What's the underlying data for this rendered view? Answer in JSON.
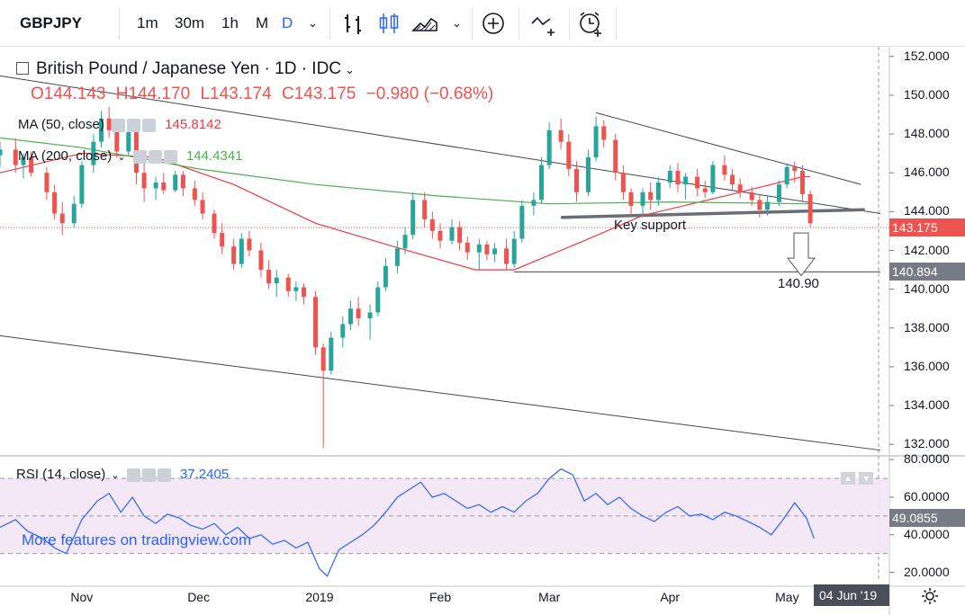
{
  "toolbar": {
    "symbol": "GBPJPY",
    "intervals": [
      "1m",
      "30m",
      "1h",
      "M",
      "D"
    ],
    "active_interval": "D"
  },
  "legend": {
    "title": "British Pound / Japanese Yen · 1D · IDC",
    "open": "O144.143",
    "high": "H144.170",
    "low": "L143.174",
    "close": "C143.175",
    "change": "−0.980 (−0.68%)",
    "ma50": {
      "label": "MA (50, close)",
      "value": "145.8142",
      "color": "#f23645"
    },
    "ma200": {
      "label": "MA (200, close)",
      "value": "144.4341",
      "color": "#4caf50"
    }
  },
  "annotations": {
    "key_support": "Key support",
    "target": "140.90"
  },
  "price_labels": {
    "last": "143.175",
    "level": "140.894"
  },
  "rsi": {
    "label": "RSI (14, close)",
    "value": "37.2405",
    "current": "49.0855",
    "color": "#2962ff"
  },
  "watermark": "More features on tradingview.com",
  "date_badge": "04 Jun '19",
  "colors": {
    "up": "#26a69a",
    "down": "#ef5350"
  },
  "chart_data": {
    "type": "candlestick",
    "title": "British Pound / Japanese Yen · 1D · IDC",
    "y_ticks": [
      132,
      134,
      136,
      138,
      140,
      142,
      144,
      146,
      148,
      150,
      152
    ],
    "y_tick_labels": [
      "132.000",
      "134.000",
      "136.000",
      "138.000",
      "140.000",
      "142.000",
      "144.000",
      "146.000",
      "148.000",
      "150.000",
      "152.000"
    ],
    "ylim": [
      131.5,
      152.5
    ],
    "x_tick_labels": [
      "Nov",
      "Dec",
      "2019",
      "Feb",
      "Mar",
      "Apr",
      "May"
    ],
    "x_tick_dates": [
      "2018-11-01",
      "2018-12-01",
      "2019-01-01",
      "2019-02-01",
      "2019-03-01",
      "2019-04-01",
      "2019-05-01"
    ],
    "xlim": [
      "2018-10-11",
      "2019-05-25"
    ],
    "series": [
      {
        "name": "MA (50, close)",
        "color": "#f23645",
        "points": [
          [
            "2018-10-11",
            146.0
          ],
          [
            "2018-11-01",
            147.0
          ],
          [
            "2018-11-20",
            146.8
          ],
          [
            "2018-12-10",
            145.4
          ],
          [
            "2018-12-31",
            143.4
          ],
          [
            "2019-01-20",
            142.2
          ],
          [
            "2019-02-10",
            141.0
          ],
          [
            "2019-02-20",
            141.0
          ],
          [
            "2019-03-10",
            142.5
          ],
          [
            "2019-03-25",
            143.8
          ],
          [
            "2019-04-15",
            144.8
          ],
          [
            "2019-05-05",
            145.8
          ],
          [
            "2019-05-07",
            145.8
          ]
        ]
      },
      {
        "name": "MA (200, close)",
        "color": "#4caf50",
        "points": [
          [
            "2018-10-11",
            147.8
          ],
          [
            "2018-11-01",
            147.3
          ],
          [
            "2018-12-01",
            146.2
          ],
          [
            "2018-12-31",
            145.4
          ],
          [
            "2019-02-01",
            144.8
          ],
          [
            "2019-03-01",
            144.4
          ],
          [
            "2019-04-01",
            144.5
          ],
          [
            "2019-05-07",
            144.4
          ]
        ]
      }
    ],
    "candles": [
      {
        "date": "2018-10-11",
        "o": 146.9,
        "h": 147.6,
        "l": 146.3,
        "c": 147.2
      },
      {
        "date": "2018-10-15",
        "o": 147.2,
        "h": 147.8,
        "l": 146.0,
        "c": 146.4
      },
      {
        "date": "2018-10-17",
        "o": 146.4,
        "h": 147.0,
        "l": 145.7,
        "c": 146.8
      },
      {
        "date": "2018-10-19",
        "o": 146.8,
        "h": 147.1,
        "l": 145.8,
        "c": 146.0
      },
      {
        "date": "2018-10-23",
        "o": 146.0,
        "h": 146.3,
        "l": 144.6,
        "c": 145.0
      },
      {
        "date": "2018-10-25",
        "o": 145.0,
        "h": 145.4,
        "l": 143.6,
        "c": 143.9
      },
      {
        "date": "2018-10-27",
        "o": 143.9,
        "h": 144.5,
        "l": 142.8,
        "c": 143.4
      },
      {
        "date": "2018-10-30",
        "o": 143.4,
        "h": 144.8,
        "l": 143.2,
        "c": 144.4
      },
      {
        "date": "2018-11-01",
        "o": 144.4,
        "h": 146.6,
        "l": 144.2,
        "c": 146.4
      },
      {
        "date": "2018-11-04",
        "o": 146.4,
        "h": 148.0,
        "l": 146.0,
        "c": 147.6
      },
      {
        "date": "2018-11-06",
        "o": 147.6,
        "h": 149.2,
        "l": 147.3,
        "c": 148.8
      },
      {
        "date": "2018-11-08",
        "o": 148.8,
        "h": 149.4,
        "l": 147.8,
        "c": 148.2
      },
      {
        "date": "2018-11-10",
        "o": 148.2,
        "h": 148.6,
        "l": 146.8,
        "c": 147.1
      },
      {
        "date": "2018-11-13",
        "o": 147.1,
        "h": 148.5,
        "l": 146.9,
        "c": 148.1
      },
      {
        "date": "2018-11-15",
        "o": 148.1,
        "h": 148.3,
        "l": 145.4,
        "c": 146.0
      },
      {
        "date": "2018-11-17",
        "o": 146.0,
        "h": 146.5,
        "l": 144.5,
        "c": 145.2
      },
      {
        "date": "2018-11-20",
        "o": 145.2,
        "h": 145.8,
        "l": 144.6,
        "c": 145.5
      },
      {
        "date": "2018-11-22",
        "o": 145.5,
        "h": 146.0,
        "l": 144.9,
        "c": 145.1
      },
      {
        "date": "2018-11-25",
        "o": 145.1,
        "h": 146.1,
        "l": 145.0,
        "c": 145.9
      },
      {
        "date": "2018-11-27",
        "o": 145.9,
        "h": 146.1,
        "l": 144.8,
        "c": 145.2
      },
      {
        "date": "2018-11-30",
        "o": 145.2,
        "h": 145.6,
        "l": 144.3,
        "c": 144.6
      },
      {
        "date": "2018-12-02",
        "o": 144.6,
        "h": 145.0,
        "l": 143.6,
        "c": 143.9
      },
      {
        "date": "2018-12-05",
        "o": 143.9,
        "h": 144.1,
        "l": 142.6,
        "c": 142.9
      },
      {
        "date": "2018-12-07",
        "o": 142.9,
        "h": 143.4,
        "l": 141.8,
        "c": 142.2
      },
      {
        "date": "2018-12-10",
        "o": 142.2,
        "h": 142.6,
        "l": 141.0,
        "c": 141.3
      },
      {
        "date": "2018-12-12",
        "o": 141.3,
        "h": 142.9,
        "l": 141.1,
        "c": 142.6
      },
      {
        "date": "2018-12-14",
        "o": 142.6,
        "h": 143.0,
        "l": 141.7,
        "c": 142.0
      },
      {
        "date": "2018-12-17",
        "o": 142.0,
        "h": 142.4,
        "l": 140.6,
        "c": 141.0
      },
      {
        "date": "2018-12-19",
        "o": 141.0,
        "h": 141.5,
        "l": 140.0,
        "c": 140.3
      },
      {
        "date": "2018-12-21",
        "o": 140.3,
        "h": 141.0,
        "l": 139.6,
        "c": 140.6
      },
      {
        "date": "2018-12-24",
        "o": 140.6,
        "h": 140.8,
        "l": 139.6,
        "c": 139.9
      },
      {
        "date": "2018-12-26",
        "o": 139.9,
        "h": 140.4,
        "l": 139.4,
        "c": 140.1
      },
      {
        "date": "2018-12-28",
        "o": 140.1,
        "h": 140.3,
        "l": 139.2,
        "c": 139.6
      },
      {
        "date": "2018-12-31",
        "o": 139.6,
        "h": 139.9,
        "l": 136.6,
        "c": 137.0
      },
      {
        "date": "2019-01-02",
        "o": 137.0,
        "h": 137.2,
        "l": 131.8,
        "c": 135.8
      },
      {
        "date": "2019-01-04",
        "o": 135.8,
        "h": 137.8,
        "l": 135.6,
        "c": 137.5
      },
      {
        "date": "2019-01-07",
        "o": 137.5,
        "h": 138.6,
        "l": 137.0,
        "c": 138.2
      },
      {
        "date": "2019-01-09",
        "o": 138.2,
        "h": 139.4,
        "l": 137.9,
        "c": 139.0
      },
      {
        "date": "2019-01-11",
        "o": 139.0,
        "h": 139.6,
        "l": 138.1,
        "c": 138.5
      },
      {
        "date": "2019-01-14",
        "o": 138.5,
        "h": 139.2,
        "l": 137.4,
        "c": 138.8
      },
      {
        "date": "2019-01-16",
        "o": 138.8,
        "h": 140.4,
        "l": 138.6,
        "c": 140.1
      },
      {
        "date": "2019-01-18",
        "o": 140.1,
        "h": 141.6,
        "l": 139.9,
        "c": 141.2
      },
      {
        "date": "2019-01-21",
        "o": 141.2,
        "h": 142.5,
        "l": 140.8,
        "c": 142.1
      },
      {
        "date": "2019-01-23",
        "o": 142.1,
        "h": 143.2,
        "l": 141.8,
        "c": 142.8
      },
      {
        "date": "2019-01-25",
        "o": 142.8,
        "h": 145.0,
        "l": 142.6,
        "c": 144.6
      },
      {
        "date": "2019-01-28",
        "o": 144.6,
        "h": 145.0,
        "l": 143.2,
        "c": 143.6
      },
      {
        "date": "2019-01-30",
        "o": 143.6,
        "h": 144.0,
        "l": 142.6,
        "c": 143.0
      },
      {
        "date": "2019-02-01",
        "o": 143.0,
        "h": 143.4,
        "l": 142.1,
        "c": 142.5
      },
      {
        "date": "2019-02-04",
        "o": 142.5,
        "h": 143.6,
        "l": 142.3,
        "c": 143.2
      },
      {
        "date": "2019-02-06",
        "o": 143.2,
        "h": 143.5,
        "l": 142.0,
        "c": 142.4
      },
      {
        "date": "2019-02-08",
        "o": 142.4,
        "h": 142.7,
        "l": 141.5,
        "c": 141.9
      },
      {
        "date": "2019-02-11",
        "o": 141.9,
        "h": 142.6,
        "l": 141.0,
        "c": 142.3
      },
      {
        "date": "2019-02-13",
        "o": 142.3,
        "h": 142.5,
        "l": 141.5,
        "c": 141.8
      },
      {
        "date": "2019-02-15",
        "o": 141.8,
        "h": 142.4,
        "l": 141.4,
        "c": 142.1
      },
      {
        "date": "2019-02-18",
        "o": 142.1,
        "h": 142.6,
        "l": 141.0,
        "c": 141.3
      },
      {
        "date": "2019-02-20",
        "o": 141.3,
        "h": 143.0,
        "l": 141.1,
        "c": 142.6
      },
      {
        "date": "2019-02-22",
        "o": 142.6,
        "h": 144.6,
        "l": 142.4,
        "c": 144.3
      },
      {
        "date": "2019-02-25",
        "o": 144.3,
        "h": 145.0,
        "l": 143.8,
        "c": 144.6
      },
      {
        "date": "2019-02-27",
        "o": 144.6,
        "h": 146.8,
        "l": 144.4,
        "c": 146.4
      },
      {
        "date": "2019-03-01",
        "o": 146.4,
        "h": 148.6,
        "l": 146.2,
        "c": 148.2
      },
      {
        "date": "2019-03-04",
        "o": 148.2,
        "h": 148.8,
        "l": 147.2,
        "c": 147.6
      },
      {
        "date": "2019-03-06",
        "o": 147.6,
        "h": 148.0,
        "l": 145.8,
        "c": 146.2
      },
      {
        "date": "2019-03-08",
        "o": 146.2,
        "h": 146.6,
        "l": 144.5,
        "c": 145.0
      },
      {
        "date": "2019-03-11",
        "o": 145.0,
        "h": 147.2,
        "l": 144.8,
        "c": 146.8
      },
      {
        "date": "2019-03-13",
        "o": 146.8,
        "h": 148.9,
        "l": 146.6,
        "c": 148.4
      },
      {
        "date": "2019-03-15",
        "o": 148.4,
        "h": 148.7,
        "l": 147.3,
        "c": 147.7
      },
      {
        "date": "2019-03-18",
        "o": 147.7,
        "h": 148.0,
        "l": 145.6,
        "c": 146.0
      },
      {
        "date": "2019-03-20",
        "o": 146.0,
        "h": 146.4,
        "l": 144.6,
        "c": 145.0
      },
      {
        "date": "2019-03-22",
        "o": 145.0,
        "h": 145.2,
        "l": 143.8,
        "c": 144.3
      },
      {
        "date": "2019-03-25",
        "o": 144.3,
        "h": 145.2,
        "l": 143.7,
        "c": 145.0
      },
      {
        "date": "2019-03-27",
        "o": 145.0,
        "h": 145.5,
        "l": 144.1,
        "c": 144.6
      },
      {
        "date": "2019-03-29",
        "o": 144.6,
        "h": 145.8,
        "l": 144.3,
        "c": 145.5
      },
      {
        "date": "2019-04-01",
        "o": 145.5,
        "h": 146.4,
        "l": 145.2,
        "c": 146.1
      },
      {
        "date": "2019-04-03",
        "o": 146.1,
        "h": 146.5,
        "l": 145.0,
        "c": 145.4
      },
      {
        "date": "2019-04-05",
        "o": 145.4,
        "h": 146.0,
        "l": 144.6,
        "c": 145.8
      },
      {
        "date": "2019-04-08",
        "o": 145.8,
        "h": 146.2,
        "l": 144.8,
        "c": 145.2
      },
      {
        "date": "2019-04-10",
        "o": 145.2,
        "h": 145.6,
        "l": 144.7,
        "c": 145.0
      },
      {
        "date": "2019-04-12",
        "o": 145.0,
        "h": 146.6,
        "l": 144.9,
        "c": 146.4
      },
      {
        "date": "2019-04-15",
        "o": 146.4,
        "h": 146.9,
        "l": 145.6,
        "c": 145.9
      },
      {
        "date": "2019-04-17",
        "o": 145.9,
        "h": 146.2,
        "l": 145.1,
        "c": 145.4
      },
      {
        "date": "2019-04-19",
        "o": 145.4,
        "h": 145.7,
        "l": 144.7,
        "c": 145.0
      },
      {
        "date": "2019-04-22",
        "o": 145.0,
        "h": 145.3,
        "l": 144.3,
        "c": 144.6
      },
      {
        "date": "2019-04-24",
        "o": 144.6,
        "h": 144.9,
        "l": 143.7,
        "c": 144.1
      },
      {
        "date": "2019-04-26",
        "o": 144.1,
        "h": 144.8,
        "l": 143.8,
        "c": 144.5
      },
      {
        "date": "2019-04-29",
        "o": 144.5,
        "h": 145.6,
        "l": 144.3,
        "c": 145.4
      },
      {
        "date": "2019-05-01",
        "o": 145.4,
        "h": 146.5,
        "l": 145.2,
        "c": 146.3
      },
      {
        "date": "2019-05-03",
        "o": 146.3,
        "h": 146.6,
        "l": 145.5,
        "c": 146.1
      },
      {
        "date": "2019-05-05",
        "o": 146.1,
        "h": 146.4,
        "l": 144.5,
        "c": 144.9
      },
      {
        "date": "2019-05-07",
        "o": 144.9,
        "h": 145.1,
        "l": 143.2,
        "c": 143.4
      }
    ],
    "trendlines": [
      {
        "name": "upper-channel-line",
        "points": [
          [
            "2018-10-11",
            151.0
          ],
          [
            "2019-05-25",
            143.9
          ]
        ]
      },
      {
        "name": "lower-channel-line",
        "points": [
          [
            "2018-10-11",
            137.6
          ],
          [
            "2019-05-25",
            131.7
          ]
        ]
      },
      {
        "name": "falling-resistance-line",
        "points": [
          [
            "2019-03-13",
            149.1
          ],
          [
            "2019-05-20",
            145.4
          ]
        ]
      },
      {
        "name": "key-support-line",
        "points": [
          [
            "2019-03-04",
            143.7
          ],
          [
            "2019-05-21",
            144.1
          ]
        ]
      },
      {
        "name": "target-level-line",
        "points": [
          [
            "2019-02-20",
            140.894
          ],
          [
            "2019-05-25",
            140.894
          ]
        ]
      }
    ],
    "last_price": 143.175,
    "level": 140.894
  },
  "rsi_data": {
    "y_tick_labels": [
      "20.0000",
      "40.0000",
      "60.0000",
      "80.0000"
    ],
    "ylim": [
      15,
      82
    ],
    "band": [
      30,
      70
    ],
    "mid": 50,
    "points": [
      [
        "2018-10-11",
        44
      ],
      [
        "2018-10-15",
        48
      ],
      [
        "2018-10-18",
        42
      ],
      [
        "2018-10-22",
        38
      ],
      [
        "2018-10-25",
        33
      ],
      [
        "2018-10-28",
        30
      ],
      [
        "2018-11-01",
        48
      ],
      [
        "2018-11-05",
        58
      ],
      [
        "2018-11-08",
        62
      ],
      [
        "2018-11-11",
        52
      ],
      [
        "2018-11-14",
        60
      ],
      [
        "2018-11-17",
        50
      ],
      [
        "2018-11-20",
        46
      ],
      [
        "2018-11-23",
        51
      ],
      [
        "2018-11-26",
        49
      ],
      [
        "2018-11-29",
        45
      ],
      [
        "2018-12-02",
        43
      ],
      [
        "2018-12-05",
        46
      ],
      [
        "2018-12-08",
        40
      ],
      [
        "2018-12-11",
        44
      ],
      [
        "2018-12-14",
        38
      ],
      [
        "2018-12-17",
        40
      ],
      [
        "2018-12-20",
        35
      ],
      [
        "2018-12-23",
        37
      ],
      [
        "2018-12-26",
        33
      ],
      [
        "2018-12-29",
        36
      ],
      [
        "2019-01-01",
        22
      ],
      [
        "2019-01-03",
        18
      ],
      [
        "2019-01-06",
        32
      ],
      [
        "2019-01-09",
        36
      ],
      [
        "2019-01-12",
        40
      ],
      [
        "2019-01-15",
        45
      ],
      [
        "2019-01-18",
        52
      ],
      [
        "2019-01-21",
        60
      ],
      [
        "2019-01-24",
        64
      ],
      [
        "2019-01-27",
        68
      ],
      [
        "2019-01-30",
        60
      ],
      [
        "2019-02-02",
        62
      ],
      [
        "2019-02-05",
        58
      ],
      [
        "2019-02-08",
        54
      ],
      [
        "2019-02-11",
        56
      ],
      [
        "2019-02-14",
        52
      ],
      [
        "2019-02-17",
        55
      ],
      [
        "2019-02-20",
        52
      ],
      [
        "2019-02-23",
        58
      ],
      [
        "2019-02-26",
        62
      ],
      [
        "2019-03-01",
        70
      ],
      [
        "2019-03-04",
        75
      ],
      [
        "2019-03-07",
        72
      ],
      [
        "2019-03-10",
        58
      ],
      [
        "2019-03-13",
        62
      ],
      [
        "2019-03-16",
        56
      ],
      [
        "2019-03-19",
        60
      ],
      [
        "2019-03-22",
        54
      ],
      [
        "2019-03-25",
        50
      ],
      [
        "2019-03-28",
        47
      ],
      [
        "2019-03-31",
        52
      ],
      [
        "2019-04-03",
        55
      ],
      [
        "2019-04-06",
        50
      ],
      [
        "2019-04-09",
        51
      ],
      [
        "2019-04-12",
        48
      ],
      [
        "2019-04-15",
        52
      ],
      [
        "2019-04-18",
        50
      ],
      [
        "2019-04-21",
        47
      ],
      [
        "2019-04-24",
        44
      ],
      [
        "2019-04-27",
        40
      ],
      [
        "2019-04-30",
        48
      ],
      [
        "2019-05-03",
        57
      ],
      [
        "2019-05-06",
        49
      ],
      [
        "2019-05-08",
        38
      ]
    ]
  }
}
